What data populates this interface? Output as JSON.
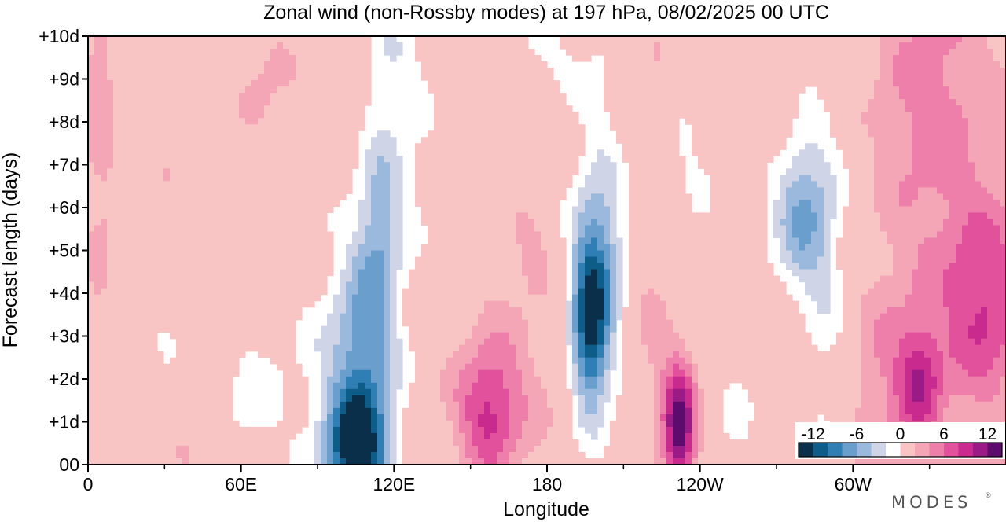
{
  "chart_data": {
    "type": "heatmap",
    "title": "Zonal wind (non-Rossby modes) at 197 hPa,  08/02/2025  00 UTC",
    "xlabel": "Longitude",
    "ylabel": "Forecast length (days)",
    "x_ticks": [
      {
        "lon": 0,
        "label": "0"
      },
      {
        "lon": 60,
        "label": "60E"
      },
      {
        "lon": 120,
        "label": "120E"
      },
      {
        "lon": 180,
        "label": "180"
      },
      {
        "lon": 240,
        "label": "120W"
      },
      {
        "lon": 300,
        "label": "60W"
      }
    ],
    "x_minor_lons": [
      30,
      90,
      150,
      210,
      270,
      330
    ],
    "xlim": [
      0,
      360
    ],
    "y_ticks": [
      {
        "day": 0,
        "label": "00"
      },
      {
        "day": 1,
        "label": "+1d"
      },
      {
        "day": 2,
        "label": "+2d"
      },
      {
        "day": 3,
        "label": "+3d"
      },
      {
        "day": 4,
        "label": "+4d"
      },
      {
        "day": 5,
        "label": "+5d"
      },
      {
        "day": 6,
        "label": "+6d"
      },
      {
        "day": 7,
        "label": "+7d"
      },
      {
        "day": 8,
        "label": "+8d"
      },
      {
        "day": 9,
        "label": "+9d"
      },
      {
        "day": 10,
        "label": "+10d"
      }
    ],
    "ylim": [
      0,
      10
    ],
    "levels": [
      -14,
      -12,
      -10,
      -8,
      -6,
      -4,
      -2,
      2,
      4,
      6,
      8,
      10,
      12,
      14
    ],
    "colors": [
      "#0a2f4a",
      "#0e5c88",
      "#2f7fb4",
      "#6a9fcd",
      "#9ab9dd",
      "#cfd4e6",
      "#ffffff",
      "#f8c4c4",
      "#f4a5b6",
      "#ee7faa",
      "#e2519b",
      "#c92a8e",
      "#9a1a86",
      "#5e0b6e"
    ],
    "colorbar": {
      "labels": [
        {
          "value": -12,
          "label": "-12"
        },
        {
          "value": -6,
          "label": "-6"
        },
        {
          "value": 0,
          "label": "0"
        },
        {
          "value": 6,
          "label": "6"
        },
        {
          "value": 12,
          "label": "12"
        }
      ]
    },
    "features": [
      {
        "kind": "neg",
        "lon": 105,
        "day": 0.3,
        "slon": 8,
        "sday": 0.9,
        "amp": 13
      },
      {
        "kind": "neg",
        "lon": 108,
        "day": 2.3,
        "slon": 9,
        "sday": 2.0,
        "amp": 7
      },
      {
        "kind": "neg",
        "lon": 114,
        "day": 5.5,
        "slon": 6,
        "sday": 1.6,
        "amp": 5
      },
      {
        "kind": "neg",
        "lon": 100,
        "day": 2.0,
        "slon": 20,
        "sday": 2.2,
        "amp": 2.6
      },
      {
        "kind": "neg",
        "lon": 124,
        "day": 7.5,
        "slon": 10,
        "sday": 2.0,
        "amp": 2.5
      },
      {
        "kind": "neg",
        "lon": 118,
        "day": 9.6,
        "slon": 7,
        "sday": 0.9,
        "amp": 2.4
      },
      {
        "kind": "neg",
        "lon": 62,
        "day": 1.5,
        "slon": 9,
        "sday": 1.2,
        "amp": 2.3
      },
      {
        "kind": "neg",
        "lon": 30,
        "day": 3.8,
        "slon": 7,
        "sday": 1.2,
        "amp": 2.3
      },
      {
        "kind": "neg",
        "lon": 197,
        "day": 3.1,
        "slon": 5,
        "sday": 1.3,
        "amp": 12
      },
      {
        "kind": "neg",
        "lon": 200,
        "day": 5.0,
        "slon": 7,
        "sday": 1.3,
        "amp": 5.5
      },
      {
        "kind": "neg",
        "lon": 200,
        "day": 3.5,
        "slon": 13,
        "sday": 3.0,
        "amp": 3.0
      },
      {
        "kind": "neg",
        "lon": 203,
        "day": 9.0,
        "slon": 7,
        "sday": 1.5,
        "amp": 2.4
      },
      {
        "kind": "neg",
        "lon": 176,
        "day": 9.6,
        "slon": 12,
        "sday": 0.9,
        "amp": 2.3
      },
      {
        "kind": "neg",
        "lon": 237,
        "day": 7.6,
        "slon": 9,
        "sday": 1.6,
        "amp": 2.3
      },
      {
        "kind": "neg",
        "lon": 256,
        "day": 1.3,
        "slon": 9,
        "sday": 1.2,
        "amp": 2.2
      },
      {
        "kind": "neg",
        "lon": 280,
        "day": 5.8,
        "slon": 8,
        "sday": 1.3,
        "amp": 6
      },
      {
        "kind": "neg",
        "lon": 290,
        "day": 2.5,
        "slon": 6,
        "sday": 2.8,
        "amp": 2.6
      },
      {
        "kind": "neg",
        "lon": 284,
        "day": 6.2,
        "slon": 14,
        "sday": 2.0,
        "amp": 2.5
      },
      {
        "kind": "pos",
        "lon": 157,
        "day": 1.2,
        "slon": 8,
        "sday": 1.0,
        "amp": 6.5
      },
      {
        "kind": "pos",
        "lon": 165,
        "day": 1.8,
        "slon": 22,
        "sday": 1.9,
        "amp": 2.8
      },
      {
        "kind": "pos",
        "lon": 175,
        "day": 5.0,
        "slon": 8,
        "sday": 0.8,
        "amp": 2.4
      },
      {
        "kind": "pos",
        "lon": 232,
        "day": 0.8,
        "slon": 4,
        "sday": 0.9,
        "amp": 11
      },
      {
        "kind": "pos",
        "lon": 230,
        "day": 1.3,
        "slon": 8,
        "sday": 1.6,
        "amp": 3.6
      },
      {
        "kind": "pos",
        "lon": 219,
        "day": 3.5,
        "slon": 6,
        "sday": 1.4,
        "amp": 2.4
      },
      {
        "kind": "pos",
        "lon": 217,
        "day": 9.3,
        "slon": 10,
        "sday": 1.4,
        "amp": 2.5
      },
      {
        "kind": "pos",
        "lon": 326,
        "day": 2.0,
        "slon": 6,
        "sday": 0.9,
        "amp": 7
      },
      {
        "kind": "pos",
        "lon": 352,
        "day": 3.8,
        "slon": 11,
        "sday": 1.5,
        "amp": 6
      },
      {
        "kind": "pos",
        "lon": 337,
        "day": 5.0,
        "slon": 26,
        "sday": 5.5,
        "amp": 3.3
      },
      {
        "kind": "pos",
        "lon": 329,
        "day": 8.7,
        "slon": 14,
        "sday": 1.8,
        "amp": 2.6
      },
      {
        "kind": "pos",
        "lon": 311,
        "day": 1.6,
        "slon": 10,
        "sday": 1.8,
        "amp": 2.4
      },
      {
        "kind": "pos",
        "lon": 5,
        "day": 6.0,
        "slon": 5,
        "sday": 2.6,
        "amp": 2.5
      },
      {
        "kind": "pos",
        "lon": 5,
        "day": 9.2,
        "slon": 5,
        "sday": 1.0,
        "amp": 2.4
      },
      {
        "kind": "pos",
        "lon": 30,
        "day": 6.4,
        "slon": 3,
        "sday": 1.7,
        "amp": 2.3
      },
      {
        "kind": "pos",
        "lon": 70,
        "day": 9.0,
        "slon": 9,
        "sday": 1.2,
        "amp": 2.4
      },
      {
        "kind": "pos",
        "lon": 38,
        "day": 0.2,
        "slon": 4,
        "sday": 0.5,
        "amp": 2.3
      },
      {
        "kind": "pos",
        "lon": 84,
        "day": 5.3,
        "slon": 3,
        "sday": 0.6,
        "amp": 2.2
      },
      {
        "kind": "pos",
        "lon": 270,
        "day": 8.2,
        "slon": 5,
        "sday": 0.8,
        "amp": 2.3
      }
    ],
    "grid": false
  },
  "branding": {
    "logo_text": "MODES"
  }
}
